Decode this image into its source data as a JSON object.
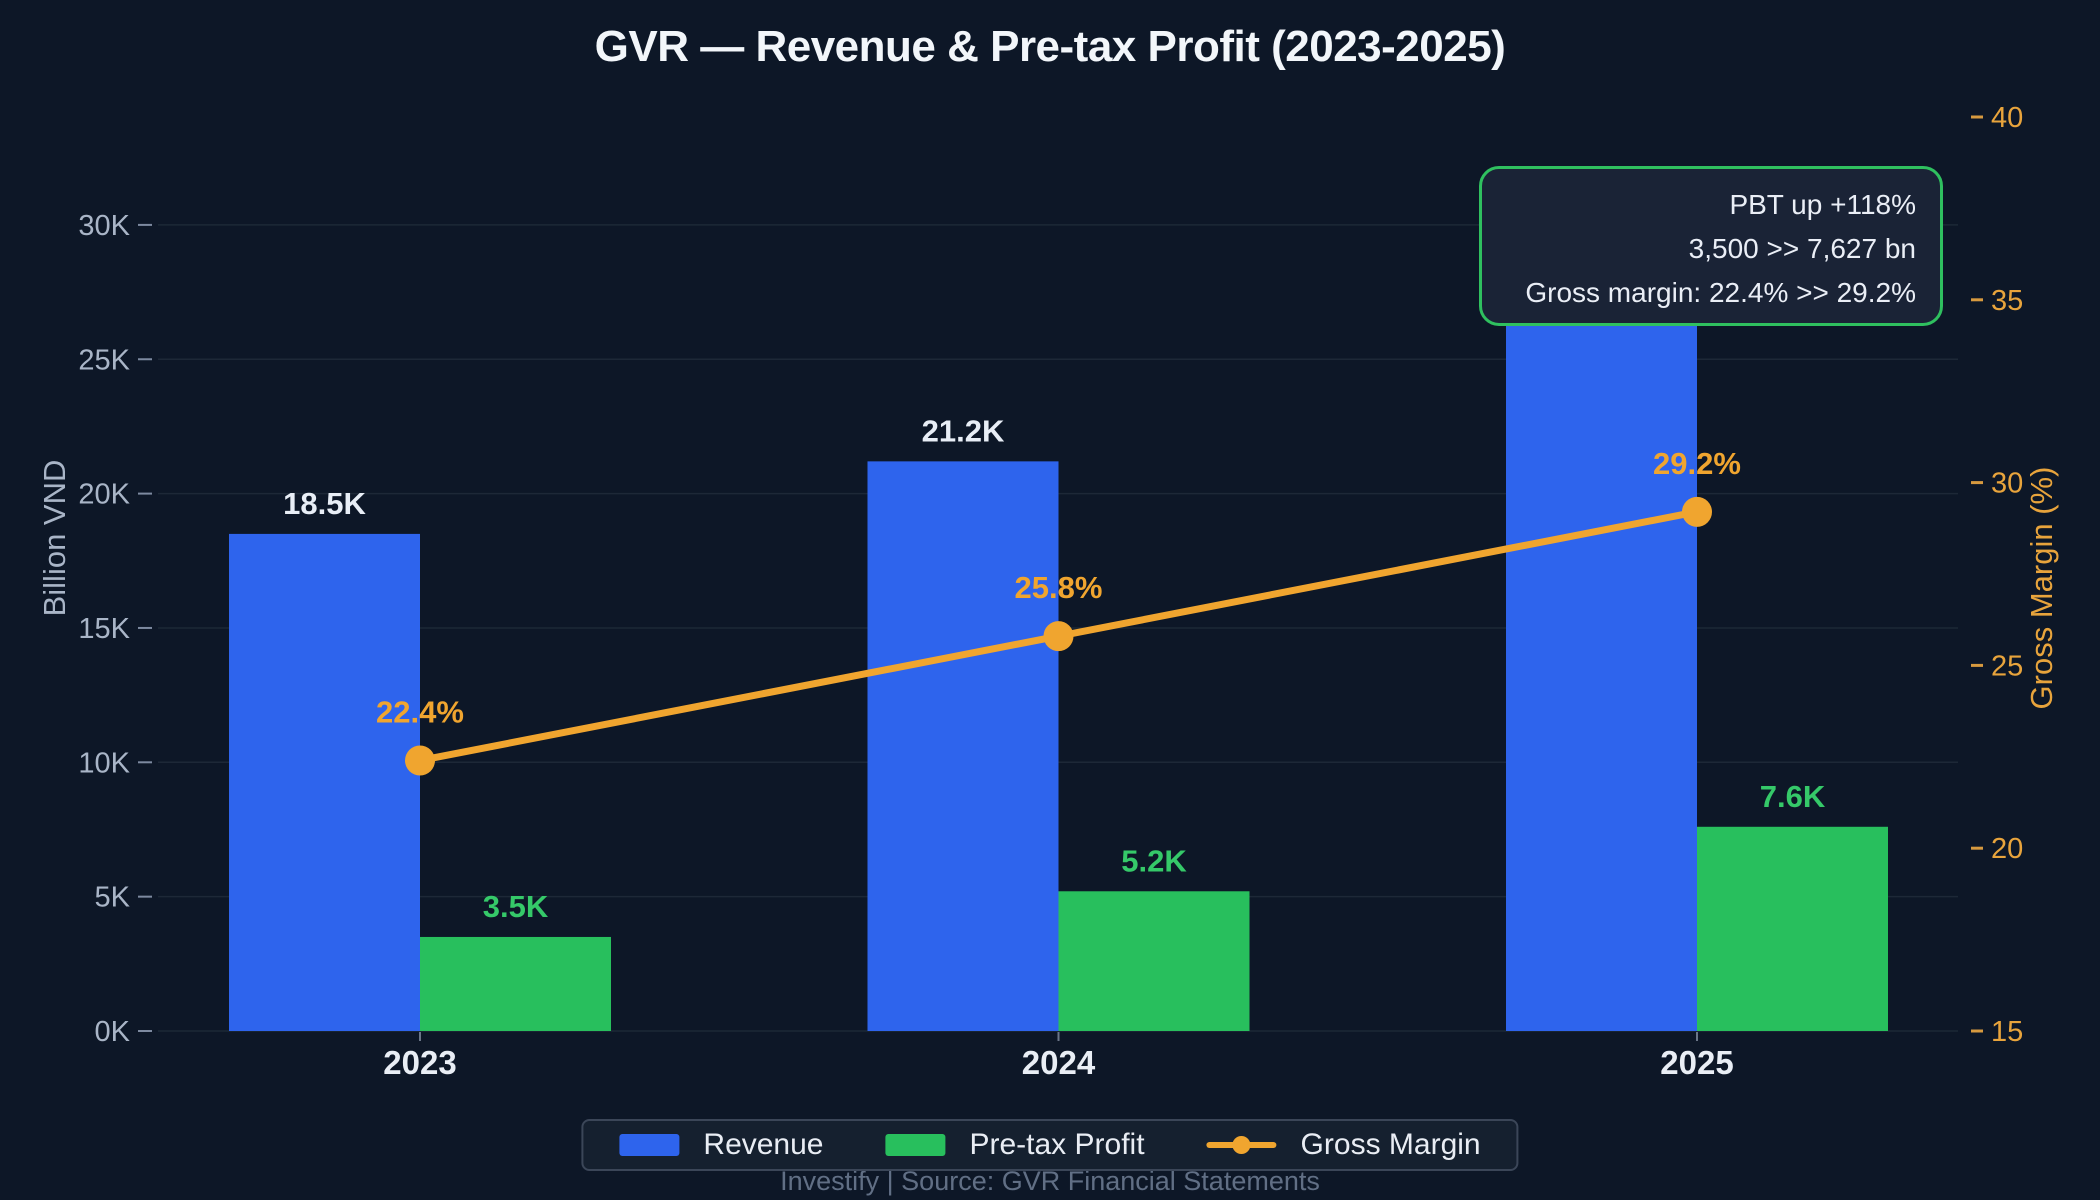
{
  "title": "GVR — Revenue & Pre-tax Profit (2023-2025)",
  "chart_data": {
    "type": "bar",
    "subtype": "grouped bars with overlaid line on secondary axis",
    "categories": [
      "2023",
      "2024",
      "2025"
    ],
    "series": [
      {
        "name": "Revenue",
        "type": "bar",
        "color": "#2E64ED",
        "label_color": "#E8EEF6",
        "values": [
          18.5,
          21.2,
          28.0
        ],
        "labels": [
          "18.5K",
          "21.2K",
          ""
        ]
      },
      {
        "name": "Pre-tax Profit",
        "type": "bar",
        "color": "#28BF5D",
        "label_color": "#35C969",
        "values": [
          3.5,
          5.2,
          7.6
        ],
        "labels": [
          "3.5K",
          "5.2K",
          "7.6K"
        ]
      },
      {
        "name": "Gross Margin",
        "type": "line",
        "axis": "right",
        "color": "#F0A52F",
        "label_color": "#F0A52F",
        "values": [
          22.4,
          25.8,
          29.2
        ],
        "labels": [
          "22.4%",
          "25.8%",
          "29.2%"
        ]
      }
    ],
    "left_axis": {
      "label": "Billion VND",
      "ticks": [
        "0K",
        "5K",
        "10K",
        "15K",
        "20K",
        "25K",
        "30K"
      ],
      "ylim": [
        0,
        34
      ]
    },
    "right_axis": {
      "label": "Gross Margin (%)",
      "ticks": [
        "15",
        "20",
        "25",
        "30",
        "35",
        "40"
      ],
      "ylim": [
        15,
        40.5
      ]
    },
    "grid": "horizontal only",
    "legend_position": "bottom center"
  },
  "annotation": {
    "lines": [
      "PBT up +118%",
      "3,500 >> 7,627 bn",
      "Gross margin: 22.4% >> 29.2%"
    ]
  },
  "legend": {
    "items": [
      {
        "label": "Revenue",
        "swatch": "blue-rect"
      },
      {
        "label": "Pre-tax Profit",
        "swatch": "green-rect"
      },
      {
        "label": "Gross Margin",
        "swatch": "orange-line-dot"
      }
    ]
  },
  "footer": "Investify  |  Source: GVR Financial Statements",
  "colors": {
    "background": "#0D1727",
    "grid_line": "#1D2837",
    "revenue_blue": "#2E64ED",
    "profit_green": "#28BF5D",
    "margin_orange": "#F0A52F",
    "left_tick_text": "#A9B5C7",
    "right_tick_text": "#E8A43C",
    "x_tick_text": "#E9EEF5",
    "title_text": "#F2F6FA",
    "annotation_border": "#2FC05F",
    "annotation_bg": "#1A2336",
    "annotation_text": "#EAEEF6",
    "legend_bg": "#15202F",
    "legend_border": "#3B4658",
    "footer_text": "#616F85"
  }
}
